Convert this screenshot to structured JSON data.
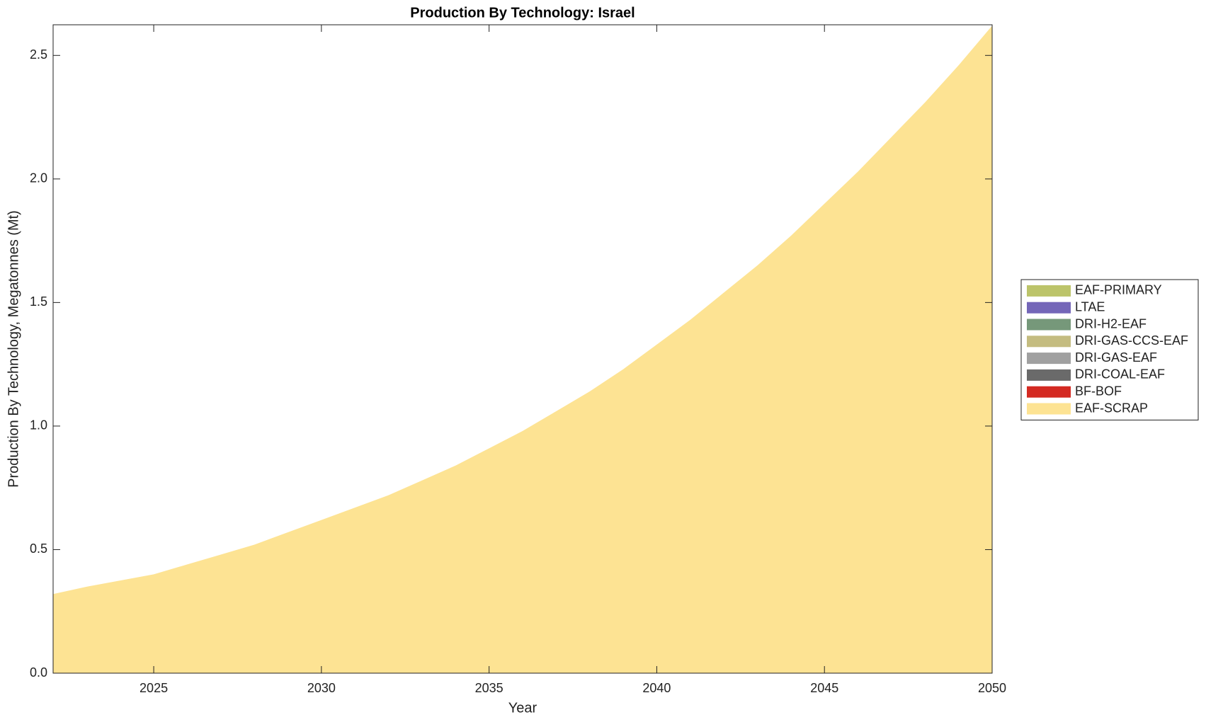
{
  "chart_data": {
    "type": "stacked-area",
    "title": "Production By Technology: Israel",
    "x_label": "Year",
    "y_label": "Production By Technology, Megatonnes (Mt)",
    "x": [
      2022,
      2023,
      2024,
      2025,
      2026,
      2027,
      2028,
      2029,
      2030,
      2031,
      2032,
      2033,
      2034,
      2035,
      2036,
      2037,
      2038,
      2039,
      2040,
      2041,
      2042,
      2043,
      2044,
      2045,
      2046,
      2047,
      2048,
      2049,
      2050
    ],
    "xlim": [
      2022,
      2050
    ],
    "xticks": [
      2025,
      2030,
      2035,
      2040,
      2045,
      2050
    ],
    "ylim": [
      0,
      2.624
    ],
    "yticks": [
      {
        "value": 0,
        "label": "0.0"
      },
      0.5,
      {
        "value": 1,
        "label": "1.0"
      },
      1.5,
      {
        "value": 2,
        "label": "2.0"
      },
      2.5
    ],
    "legend_position": "right",
    "series": [
      {
        "name": "EAF-PRIMARY",
        "color": "#bcc46a",
        "values": [
          0,
          0,
          0,
          0,
          0,
          0,
          0,
          0,
          0,
          0,
          0,
          0,
          0,
          0,
          0,
          0,
          0,
          0,
          0,
          0,
          0,
          0,
          0,
          0,
          0,
          0,
          0,
          0,
          0
        ]
      },
      {
        "name": "LTAE",
        "color": "#7466b8",
        "values": [
          0,
          0,
          0,
          0,
          0,
          0,
          0,
          0,
          0,
          0,
          0,
          0,
          0,
          0,
          0,
          0,
          0,
          0,
          0,
          0,
          0,
          0,
          0,
          0,
          0,
          0,
          0,
          0,
          0
        ]
      },
      {
        "name": "DRI-H2-EAF",
        "color": "#76987a",
        "values": [
          0,
          0,
          0,
          0,
          0,
          0,
          0,
          0,
          0,
          0,
          0,
          0,
          0,
          0,
          0,
          0,
          0,
          0,
          0,
          0,
          0,
          0,
          0,
          0,
          0,
          0,
          0,
          0,
          0
        ]
      },
      {
        "name": "DRI-GAS-CCS-EAF",
        "color": "#c4bc80",
        "values": [
          0,
          0,
          0,
          0,
          0,
          0,
          0,
          0,
          0,
          0,
          0,
          0,
          0,
          0,
          0,
          0,
          0,
          0,
          0,
          0,
          0,
          0,
          0,
          0,
          0,
          0,
          0,
          0,
          0
        ]
      },
      {
        "name": "DRI-GAS-EAF",
        "color": "#a0a0a0",
        "values": [
          0,
          0,
          0,
          0,
          0,
          0,
          0,
          0,
          0,
          0,
          0,
          0,
          0,
          0,
          0,
          0,
          0,
          0,
          0,
          0,
          0,
          0,
          0,
          0,
          0,
          0,
          0,
          0,
          0
        ]
      },
      {
        "name": "DRI-COAL-EAF",
        "color": "#6a6a6a",
        "values": [
          0,
          0,
          0,
          0,
          0,
          0,
          0,
          0,
          0,
          0,
          0,
          0,
          0,
          0,
          0,
          0,
          0,
          0,
          0,
          0,
          0,
          0,
          0,
          0,
          0,
          0,
          0,
          0,
          0
        ]
      },
      {
        "name": "BF-BOF",
        "color": "#d42a22",
        "values": [
          0,
          0,
          0,
          0,
          0,
          0,
          0,
          0,
          0,
          0,
          0,
          0,
          0,
          0,
          0,
          0,
          0,
          0,
          0,
          0,
          0,
          0,
          0,
          0,
          0,
          0,
          0,
          0,
          0
        ]
      },
      {
        "name": "EAF-SCRAP",
        "color": "#fde393",
        "values": [
          0.32,
          0.35,
          0.375,
          0.4,
          0.44,
          0.48,
          0.52,
          0.57,
          0.62,
          0.67,
          0.72,
          0.78,
          0.84,
          0.91,
          0.98,
          1.06,
          1.14,
          1.23,
          1.33,
          1.43,
          1.54,
          1.65,
          1.77,
          1.9,
          2.03,
          2.17,
          2.31,
          2.46,
          2.62
        ]
      }
    ]
  }
}
